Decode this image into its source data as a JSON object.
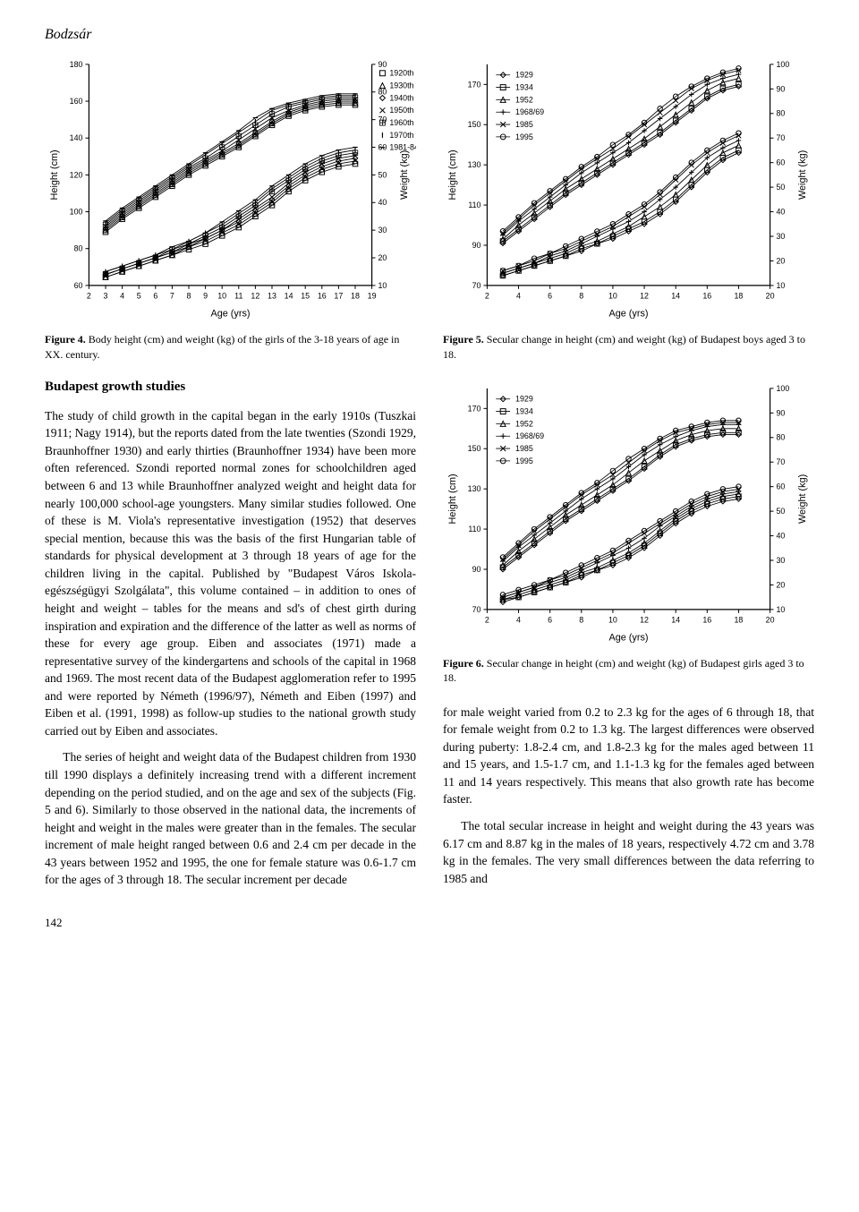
{
  "author": "Bodzsár",
  "page_number": "142",
  "figure4": {
    "caption_label": "Figure 4.",
    "caption_text": " Body height (cm) and weight (kg) of the girls of the 3-18 years of age in XX. century.",
    "type": "line_scatter_dual_axis",
    "xlabel": "Age (yrs)",
    "ylabel_left": "Height (cm)",
    "ylabel_right": "Weight (kg)",
    "x_ticks": [
      2,
      3,
      4,
      5,
      6,
      7,
      8,
      9,
      10,
      11,
      12,
      13,
      14,
      15,
      16,
      17,
      18,
      19
    ],
    "height_ylim": [
      60,
      180
    ],
    "weight_ylim": [
      10,
      90
    ],
    "legend": [
      "1920th",
      "1930th",
      "1940th",
      "1950th",
      "1960th",
      "1970th",
      "1981-84"
    ],
    "markers": [
      "square",
      "triangle",
      "diamond",
      "x",
      "plus_sq",
      "vline",
      "dash"
    ],
    "series_color": "#000000",
    "background_color": "#ffffff",
    "axis_color": "#000000",
    "label_fontsize": 11,
    "tick_fontsize": 9,
    "height_data": {
      "ages": [
        3,
        4,
        5,
        6,
        7,
        8,
        9,
        10,
        11,
        12,
        13,
        14,
        15,
        16,
        17,
        18
      ],
      "1920th": [
        89,
        96,
        102,
        108,
        114,
        120,
        125,
        130,
        135,
        141,
        147,
        152,
        155,
        157,
        158,
        158
      ],
      "1930th": [
        90,
        97,
        103,
        109,
        115,
        121,
        126,
        131,
        136,
        142,
        148,
        153,
        156,
        158,
        159,
        159
      ],
      "1940th": [
        91,
        98,
        104,
        110,
        116,
        122,
        127,
        132,
        137,
        143,
        149,
        154,
        157,
        159,
        160,
        160
      ],
      "1950th": [
        92,
        99,
        105,
        111,
        117,
        123,
        128,
        133,
        139,
        145,
        151,
        155,
        158,
        160,
        161,
        161
      ],
      "1960th": [
        93,
        100,
        106,
        112,
        118,
        124,
        129,
        135,
        141,
        147,
        153,
        157,
        159,
        161,
        162,
        162
      ],
      "1970th": [
        94,
        101,
        107,
        113,
        119,
        125,
        131,
        137,
        143,
        149,
        155,
        158,
        160,
        162,
        163,
        163
      ],
      "1981-84": [
        95,
        102,
        108,
        114,
        120,
        126,
        132,
        138,
        144,
        151,
        156,
        159,
        161,
        163,
        164,
        164
      ]
    },
    "weight_data": {
      "ages": [
        3,
        4,
        5,
        6,
        7,
        8,
        9,
        10,
        11,
        12,
        13,
        14,
        15,
        16,
        17,
        18
      ],
      "1920th": [
        13,
        15,
        17,
        19,
        21,
        23,
        25,
        28,
        31,
        35,
        39,
        44,
        48,
        51,
        53,
        54
      ],
      "1930th": [
        13,
        15,
        17,
        19,
        21,
        24,
        26,
        29,
        32,
        36,
        40,
        45,
        49,
        52,
        54,
        55
      ],
      "1940th": [
        14,
        16,
        18,
        20,
        22,
        24,
        27,
        30,
        33,
        37,
        41,
        46,
        50,
        53,
        55,
        56
      ],
      "1950th": [
        14,
        16,
        18,
        20,
        22,
        25,
        27,
        30,
        34,
        38,
        42,
        47,
        51,
        54,
        56,
        57
      ],
      "1960th": [
        14,
        16,
        18,
        20,
        23,
        25,
        28,
        31,
        35,
        39,
        44,
        48,
        52,
        55,
        57,
        58
      ],
      "1970th": [
        15,
        17,
        19,
        21,
        23,
        26,
        29,
        32,
        36,
        40,
        45,
        49,
        53,
        56,
        58,
        59
      ],
      "1981-84": [
        15,
        17,
        19,
        21,
        24,
        26,
        29,
        33,
        37,
        41,
        46,
        50,
        54,
        57,
        59,
        60
      ]
    }
  },
  "figure5": {
    "caption_label": "Figure 5.",
    "caption_text": " Secular change in height (cm) and weight (kg) of Budapest boys aged 3 to 18.",
    "type": "line_scatter_dual_axis",
    "xlabel": "Age (yrs)",
    "ylabel_left": "Height (cm)",
    "ylabel_right": "Weight (kg)",
    "x_ticks": [
      2,
      4,
      6,
      8,
      10,
      12,
      14,
      16,
      18,
      20
    ],
    "height_ylim": [
      70,
      180
    ],
    "weight_ylim": [
      10,
      100
    ],
    "legend": [
      "1929",
      "1934",
      "1952",
      "1968/69",
      "1985",
      "1995"
    ],
    "markers": [
      "diamond",
      "square",
      "triangle",
      "plus",
      "x",
      "circle"
    ],
    "series_color": "#000000",
    "background_color": "#ffffff",
    "axis_color": "#000000",
    "label_fontsize": 11,
    "tick_fontsize": 9,
    "height_data": {
      "ages": [
        3,
        4,
        5,
        6,
        7,
        8,
        9,
        10,
        11,
        12,
        13,
        14,
        15,
        16,
        17,
        18
      ],
      "1929": [
        91,
        97,
        103,
        109,
        115,
        120,
        125,
        130,
        135,
        140,
        145,
        151,
        157,
        163,
        167,
        169
      ],
      "1934": [
        92,
        98,
        104,
        110,
        116,
        121,
        126,
        131,
        136,
        141,
        146,
        152,
        158,
        164,
        168,
        170
      ],
      "1952": [
        93,
        100,
        106,
        112,
        118,
        123,
        128,
        133,
        138,
        143,
        149,
        155,
        161,
        167,
        171,
        173
      ],
      "1968/69": [
        95,
        102,
        108,
        114,
        120,
        126,
        131,
        136,
        141,
        147,
        153,
        159,
        165,
        170,
        173,
        175
      ],
      "1985": [
        96,
        103,
        110,
        116,
        122,
        128,
        133,
        138,
        144,
        150,
        156,
        162,
        168,
        172,
        175,
        177
      ],
      "1995": [
        97,
        104,
        111,
        117,
        123,
        129,
        134,
        140,
        145,
        151,
        158,
        164,
        169,
        173,
        176,
        178
      ]
    },
    "weight_data": {
      "ages": [
        3,
        4,
        5,
        6,
        7,
        8,
        9,
        10,
        11,
        12,
        13,
        14,
        15,
        16,
        17,
        18
      ],
      "1929": [
        14,
        16,
        18,
        20,
        22,
        24,
        27,
        29,
        32,
        35,
        39,
        44,
        50,
        56,
        61,
        64
      ],
      "1934": [
        14,
        16,
        18,
        20,
        22,
        25,
        27,
        30,
        33,
        36,
        40,
        45,
        51,
        57,
        62,
        65
      ],
      "1952": [
        15,
        17,
        19,
        21,
        23,
        26,
        28,
        31,
        34,
        38,
        42,
        47,
        53,
        59,
        64,
        67
      ],
      "1968/69": [
        15,
        17,
        19,
        22,
        24,
        27,
        30,
        33,
        36,
        40,
        45,
        50,
        56,
        62,
        66,
        69
      ],
      "1985": [
        16,
        18,
        20,
        23,
        25,
        28,
        31,
        34,
        38,
        42,
        47,
        53,
        59,
        64,
        68,
        71
      ],
      "1995": [
        16,
        18,
        21,
        23,
        26,
        29,
        32,
        35,
        39,
        43,
        48,
        54,
        60,
        65,
        69,
        72
      ]
    }
  },
  "figure6": {
    "caption_label": "Figure 6.",
    "caption_text": " Secular change in height (cm) and weight (kg) of Budapest girls aged 3 to 18.",
    "type": "line_scatter_dual_axis",
    "xlabel": "Age (yrs)",
    "ylabel_left": "Height (cm)",
    "ylabel_right": "Weight (kg)",
    "x_ticks": [
      2,
      4,
      6,
      8,
      10,
      12,
      14,
      16,
      18,
      20
    ],
    "height_ylim": [
      70,
      180
    ],
    "weight_ylim": [
      10,
      100
    ],
    "legend": [
      "1929",
      "1934",
      "1952",
      "1968/69",
      "1985",
      "1995"
    ],
    "markers": [
      "diamond",
      "square",
      "triangle",
      "plus",
      "x",
      "circle"
    ],
    "series_color": "#000000",
    "background_color": "#ffffff",
    "axis_color": "#000000",
    "label_fontsize": 11,
    "tick_fontsize": 9,
    "height_data": {
      "ages": [
        3,
        4,
        5,
        6,
        7,
        8,
        9,
        10,
        11,
        12,
        13,
        14,
        15,
        16,
        17,
        18
      ],
      "1929": [
        90,
        96,
        102,
        108,
        114,
        119,
        124,
        129,
        134,
        140,
        146,
        151,
        154,
        156,
        157,
        157
      ],
      "1934": [
        91,
        97,
        103,
        109,
        115,
        120,
        125,
        130,
        135,
        141,
        147,
        152,
        155,
        157,
        158,
        158
      ],
      "1952": [
        92,
        99,
        105,
        111,
        117,
        122,
        127,
        132,
        138,
        144,
        149,
        154,
        157,
        159,
        160,
        160
      ],
      "1968/69": [
        94,
        101,
        107,
        113,
        119,
        125,
        130,
        135,
        141,
        147,
        152,
        156,
        159,
        161,
        162,
        162
      ],
      "1985": [
        95,
        102,
        109,
        115,
        121,
        127,
        132,
        137,
        143,
        149,
        154,
        158,
        160,
        162,
        163,
        163
      ],
      "1995": [
        96,
        103,
        110,
        116,
        122,
        128,
        133,
        139,
        145,
        150,
        155,
        159,
        161,
        163,
        164,
        164
      ]
    },
    "weight_data": {
      "ages": [
        3,
        4,
        5,
        6,
        7,
        8,
        9,
        10,
        11,
        12,
        13,
        14,
        15,
        16,
        17,
        18
      ],
      "1929": [
        13,
        15,
        17,
        19,
        21,
        23,
        26,
        28,
        31,
        35,
        40,
        45,
        49,
        52,
        54,
        55
      ],
      "1934": [
        14,
        15,
        17,
        19,
        21,
        24,
        26,
        29,
        32,
        36,
        41,
        46,
        50,
        53,
        55,
        56
      ],
      "1952": [
        14,
        16,
        18,
        20,
        22,
        25,
        27,
        30,
        33,
        37,
        42,
        47,
        51,
        54,
        56,
        57
      ],
      "1968/69": [
        15,
        17,
        19,
        21,
        23,
        26,
        29,
        32,
        35,
        39,
        44,
        48,
        52,
        55,
        57,
        58
      ],
      "1985": [
        15,
        17,
        19,
        22,
        24,
        27,
        30,
        33,
        37,
        41,
        45,
        49,
        53,
        56,
        58,
        59
      ],
      "1995": [
        16,
        18,
        20,
        22,
        25,
        28,
        31,
        34,
        38,
        42,
        46,
        50,
        54,
        57,
        59,
        60
      ]
    }
  },
  "section_heading": "Budapest growth studies",
  "para1": "The study of child growth in the capital began in the early 1910s (Tuszkai 1911; Nagy 1914), but the reports dated from the late twenties (Szondi 1929, Braunhoffner 1930) and early thirties (Braunhoffner 1934) have been more often referenced. Szondi reported normal zones for schoolchildren aged between 6 and 13 while Braunhoffner analyzed weight and height data for nearly 100,000 school-age youngsters. Many similar studies followed. One of these is M. Viola's representative investigation (1952) that deserves special mention, because this was the basis of the first Hungarian table of standards for physical development at 3 through 18 years of age for the children living in the capital. Published by \"Budapest Város Iskola-egészségügyi Szolgálata\", this volume contained – in addition to ones of height and weight – tables for the means and sd's of chest girth during inspiration and expiration and the difference of the latter as well as norms of these for every age group. Eiben and associates (1971) made a representative survey of the kindergartens and schools of the capital in 1968 and 1969. The most recent data of the Budapest agglomeration refer to 1995 and were reported by Németh (1996/97), Németh and Eiben (1997) and Eiben et al. (1991, 1998) as follow-up studies to the national growth study carried out by Eiben and associates.",
  "para2": "The series of height and weight data of the Budapest children from 1930 till 1990 displays a definitely increasing trend with a different increment depending on the period studied, and on the age and sex of the subjects (Fig. 5 and 6). Similarly to those observed in the national data, the increments of height and weight in the males were greater than in the females. The secular increment of male height ranged between 0.6 and 2.4 cm per decade in the 43 years between 1952 and 1995, the one for female stature was 0.6-1.7 cm for the ages of 3 through 18. The secular increment per decade",
  "para3": "for male weight varied from 0.2 to 2.3 kg for the ages of 6 through 18, that for female weight from 0.2 to 1.3 kg. The largest differences were observed during puberty: 1.8-2.4 cm, and 1.8-2.3 kg for the males aged between 11 and 15 years, and 1.5-1.7 cm, and 1.1-1.3 kg for the females aged between 11 and 14 years respectively. This means that also growth rate has become faster.",
  "para4": "The total secular increase in height and weight during the 43 years was 6.17 cm and 8.87 kg in the males of 18 years, respectively 4.72 cm and 3.78 kg in the females. The very small differences between the data referring to 1985 and"
}
